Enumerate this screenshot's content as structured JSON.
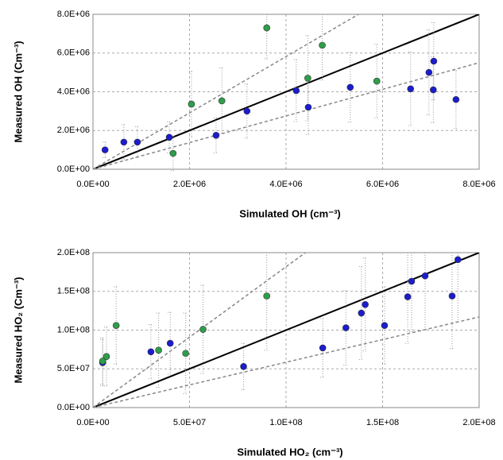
{
  "chart_data": [
    {
      "type": "scatter",
      "xlabel": "Simulated OH (cm⁻³)",
      "ylabel": "Measured OH (Cm⁻³)",
      "xlim": [
        0,
        8000000
      ],
      "ylim": [
        0,
        8000000
      ],
      "xticks": [
        {
          "value": 0,
          "label": "0.0E+00"
        },
        {
          "value": 2000000,
          "label": "2.0E+06"
        },
        {
          "value": 4000000,
          "label": "4.0E+06"
        },
        {
          "value": 6000000,
          "label": "6.0E+06"
        },
        {
          "value": 8000000,
          "label": "8.0E+06"
        }
      ],
      "yticks": [
        {
          "value": 0,
          "label": "0.0E+00"
        },
        {
          "value": 2000000,
          "label": "2.0E+06"
        },
        {
          "value": 4000000,
          "label": "4.0E+06"
        },
        {
          "value": 6000000,
          "label": "6.0E+06"
        },
        {
          "value": 8000000,
          "label": "8.0E+06"
        }
      ],
      "grid": true,
      "series": [
        {
          "color": "#1c1ccf",
          "x": [
            250000,
            640000,
            920000,
            1580000,
            2550000,
            3190000,
            4210000,
            4460000,
            5330000,
            6580000,
            6960000,
            7060000,
            7050000,
            7520000
          ],
          "values": [
            1000000,
            1400000,
            1400000,
            1650000,
            1750000,
            3000000,
            4060000,
            3200000,
            4230000,
            4150000,
            5000000,
            5580000,
            4100000,
            3600000
          ],
          "errors": [
            400000,
            900000,
            800000,
            800000,
            900000,
            1400000,
            1600000,
            1400000,
            1800000,
            1900000,
            2200000,
            2000000,
            1700000,
            1500000
          ]
        },
        {
          "color": "#2e9e4a",
          "x": [
            1660000,
            2040000,
            2670000,
            3600000,
            4450000,
            4750000,
            5880000
          ],
          "values": [
            820000,
            3360000,
            3530000,
            7300000,
            4700000,
            6400000,
            4550000
          ],
          "errors": [
            900000,
            1700000,
            1700000,
            1600000,
            2200000,
            1800000,
            1900000
          ]
        }
      ],
      "lines": [
        {
          "style": "solid",
          "x": [
            0,
            8000000
          ],
          "values": [
            0,
            8000000
          ]
        },
        {
          "style": "dashed",
          "x": [
            0,
            5500000
          ],
          "values": [
            0,
            8000000
          ]
        },
        {
          "style": "dashed",
          "x": [
            0,
            8000000
          ],
          "values": [
            0,
            5500000
          ]
        }
      ]
    },
    {
      "type": "scatter",
      "xlabel": "Simulated HO₂ (cm⁻³)",
      "ylabel": "Measured HO₂ (Cm⁻³)",
      "xlim": [
        0,
        200000000
      ],
      "ylim": [
        0,
        200000000
      ],
      "xticks": [
        {
          "value": 0,
          "label": "0.0E+00"
        },
        {
          "value": 50000000,
          "label": "5.0E+07"
        },
        {
          "value": 100000000,
          "label": "1.0E+08"
        },
        {
          "value": 150000000,
          "label": "1.5E+08"
        },
        {
          "value": 200000000,
          "label": "2.0E+08"
        }
      ],
      "yticks": [
        {
          "value": 0,
          "label": "0.0E+00"
        },
        {
          "value": 50000000,
          "label": "5.0E+07"
        },
        {
          "value": 100000000,
          "label": "1.0E+08"
        },
        {
          "value": 150000000,
          "label": "1.5E+08"
        },
        {
          "value": 200000000,
          "label": "2.0E+08"
        }
      ],
      "grid": true,
      "series": [
        {
          "color": "#1c1ccf",
          "x": [
            5000000,
            30000000,
            40000000,
            78000000,
            119000000,
            131000000,
            139000000,
            141000000,
            151000000,
            163000000,
            165000000,
            172000000,
            186000000,
            189000000
          ],
          "values": [
            58000000,
            72000000,
            83000000,
            53000000,
            77000000,
            103000000,
            122000000,
            133000000,
            106000000,
            143000000,
            163000000,
            170000000,
            144000000,
            191000000
          ],
          "errors": [
            30000000,
            35000000,
            40000000,
            30000000,
            38000000,
            48000000,
            60000000,
            60000000,
            50000000,
            60000000,
            65000000,
            70000000,
            68000000,
            80000000
          ]
        },
        {
          "color": "#2e9e4a",
          "x": [
            5000000,
            7000000,
            12000000,
            34000000,
            48000000,
            57000000,
            90000000
          ],
          "values": [
            60000000,
            66000000,
            106000000,
            74000000,
            70000000,
            101000000,
            144000000
          ],
          "errors": [
            30000000,
            38000000,
            50000000,
            48000000,
            52000000,
            57000000,
            70000000
          ]
        }
      ],
      "lines": [
        {
          "style": "solid",
          "x": [
            0,
            200000000
          ],
          "values": [
            0,
            200000000
          ]
        },
        {
          "style": "dashed",
          "x": [
            0,
            110000000
          ],
          "values": [
            0,
            200000000
          ]
        },
        {
          "style": "dashed",
          "x": [
            0,
            200000000
          ],
          "values": [
            0,
            117000000
          ]
        }
      ]
    }
  ]
}
